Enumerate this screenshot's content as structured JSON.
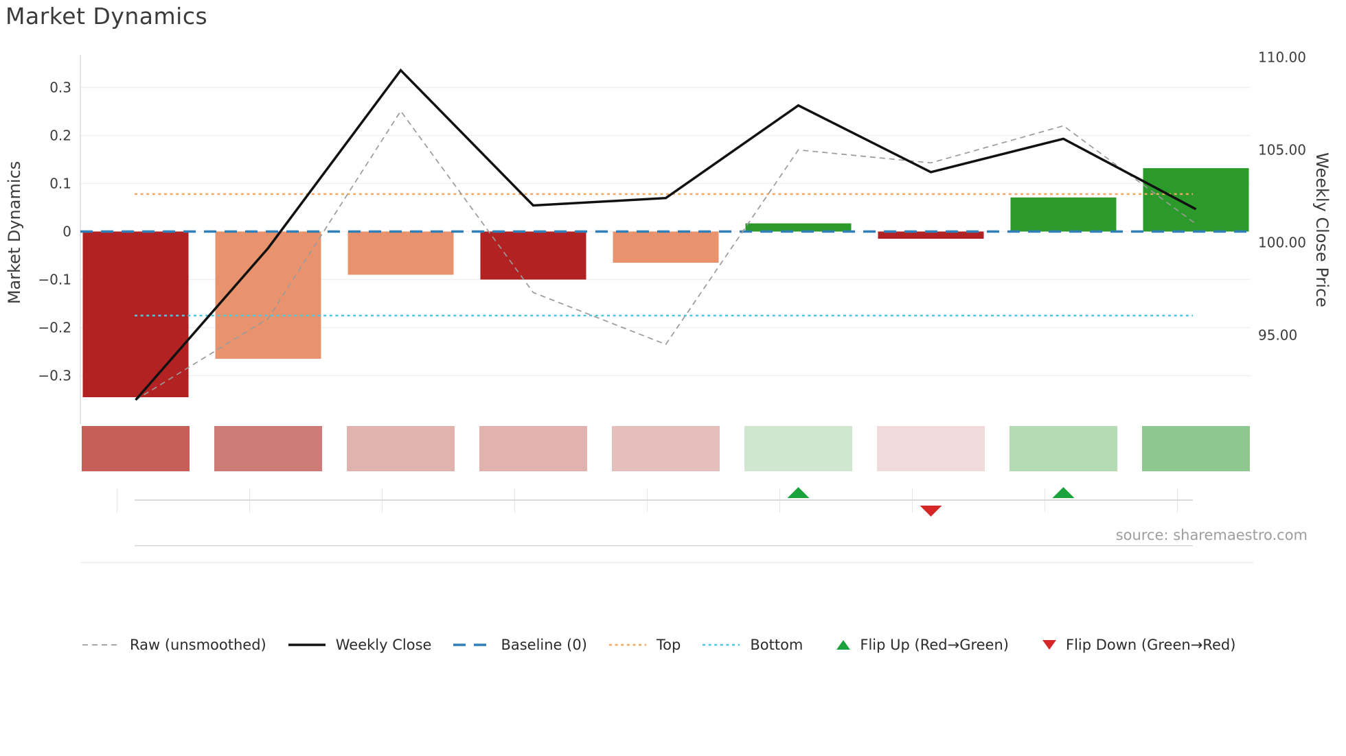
{
  "title": "Market Dynamics",
  "source_note": "source: sharemaestro.com",
  "axes": {
    "left_label": "Market Dynamics",
    "right_label": "Weekly Close Price",
    "left_ticks": [
      {
        "label": "0.3",
        "value": 0.3
      },
      {
        "label": "0.2",
        "value": 0.2
      },
      {
        "label": "0.1",
        "value": 0.1
      },
      {
        "label": "0",
        "value": 0.0
      },
      {
        "label": "−0.1",
        "value": -0.1
      },
      {
        "label": "−0.2",
        "value": -0.2
      },
      {
        "label": "−0.3",
        "value": -0.3
      }
    ],
    "right_ticks": [
      {
        "label": "110.00",
        "value": 110
      },
      {
        "label": "105.00",
        "value": 105
      },
      {
        "label": "100.00",
        "value": 100
      },
      {
        "label": "95.00",
        "value": 95
      }
    ]
  },
  "legend": {
    "items": [
      {
        "key": "raw",
        "label": "Raw (unsmoothed)",
        "swatch": "dash",
        "color": "#9a9a9a"
      },
      {
        "key": "weekly",
        "label": "Weekly Close",
        "swatch": "solid",
        "color": "#111111"
      },
      {
        "key": "baseline",
        "label": "Baseline (0)",
        "swatch": "longdash",
        "color": "#2e7fb8"
      },
      {
        "key": "top",
        "label": "Top",
        "swatch": "dot",
        "color": "#f2a660"
      },
      {
        "key": "bottom",
        "label": "Bottom",
        "swatch": "dot",
        "color": "#4ec7dd"
      },
      {
        "key": "flip-up",
        "label": "Flip Up (Red→Green)",
        "swatch": "tri-up",
        "color": "#1aa23c"
      },
      {
        "key": "flip-down",
        "label": "Flip Down (Green→Red)",
        "swatch": "tri-down",
        "color": "#d62728"
      }
    ]
  },
  "chart_data": {
    "type": "combo",
    "n_points": 9,
    "x_labels": [],
    "series": [
      {
        "name": "Market Dynamics (bars)",
        "type": "bar",
        "axis": "left",
        "values": [
          -0.345,
          -0.265,
          -0.09,
          -0.1,
          -0.065,
          0.017,
          -0.015,
          0.071,
          0.132
        ],
        "bar_colors": [
          "#b22222",
          "#e8936e",
          "#e8936e",
          "#b22222",
          "#e8936e",
          "#2b9a2b",
          "#b22222",
          "#2b9a2b",
          "#2b9a2b"
        ]
      },
      {
        "name": "Weekly Close",
        "type": "line",
        "axis": "right",
        "style": "solid",
        "color": "#111111",
        "values": [
          91.5,
          99.7,
          109.3,
          102.0,
          102.4,
          107.4,
          103.8,
          105.6,
          101.8
        ]
      },
      {
        "name": "Raw (unsmoothed)",
        "type": "line",
        "axis": "right",
        "style": "dashed",
        "color": "#9a9a9a",
        "values": [
          91.5,
          95.9,
          107.1,
          97.3,
          94.5,
          105.0,
          104.3,
          106.3,
          101.0
        ]
      }
    ],
    "reference_lines": [
      {
        "name": "Baseline (0)",
        "axis": "left",
        "value": 0.0,
        "color": "#2e7fb8",
        "style": "longdash"
      },
      {
        "name": "Top",
        "axis": "left",
        "value": 0.078,
        "color": "#f2a660",
        "style": "dotted"
      },
      {
        "name": "Bottom",
        "axis": "left",
        "value": -0.175,
        "color": "#4ec7dd",
        "style": "dotted"
      }
    ],
    "flip_markers": [
      {
        "slot": 6,
        "direction": "up",
        "color": "#1aa23c"
      },
      {
        "slot": 7,
        "direction": "down",
        "color": "#d62728"
      },
      {
        "slot": 8,
        "direction": "up",
        "color": "#1aa23c"
      }
    ],
    "regime_strip_colors": [
      "#c65f57",
      "#cd7b76",
      "#e1b3af",
      "#e1b2ae",
      "#e5bfbc",
      "#d0e6cf",
      "#f1dbda",
      "#b5dbb4",
      "#8fc791"
    ],
    "left_ylim": [
      -0.4,
      0.42
    ],
    "right_ylim": [
      90.5,
      110.6
    ],
    "grid": "horizontal",
    "legend_position": "bottom"
  }
}
